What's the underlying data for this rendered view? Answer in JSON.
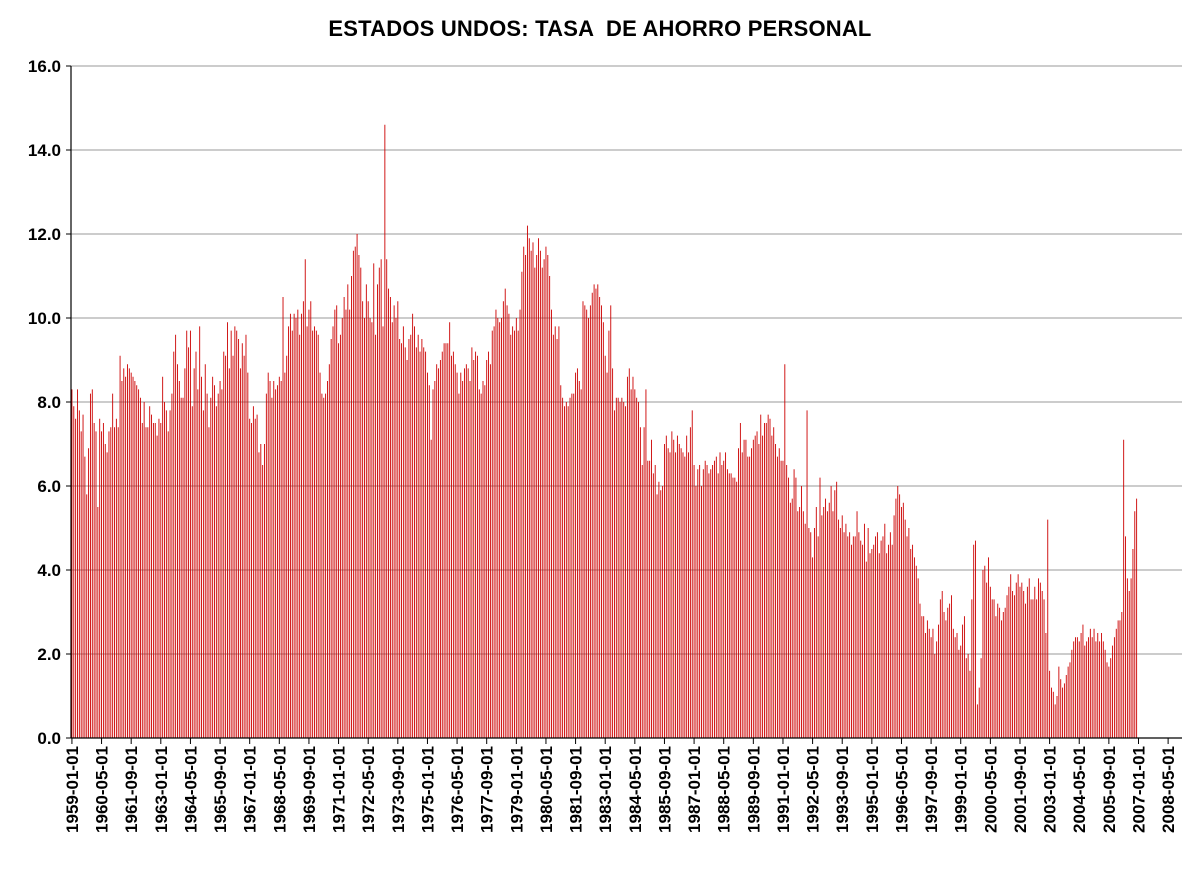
{
  "title": "ESTADOS UNDOS: TASA  DE AHORRO PERSONAL",
  "colors": {
    "bar": "#cc0000",
    "grid": "#999999",
    "axis": "#000000",
    "background": "#ffffff"
  },
  "chart_data": {
    "type": "bar",
    "title": "ESTADOS UNDOS: TASA  DE AHORRO PERSONAL",
    "xlabel": "",
    "ylabel": "",
    "ylim": [
      0,
      16
    ],
    "yticks": [
      "0.0",
      "2.0",
      "4.0",
      "6.0",
      "8.0",
      "10.0",
      "12.0",
      "14.0",
      "16.0"
    ],
    "grid": true,
    "legend": "none",
    "x_start": "1959-01",
    "x_end": "2008-12",
    "x_frequency": "monthly",
    "xtick_labels": [
      "1959-01-01",
      "1960-05-01",
      "1961-09-01",
      "1963-01-01",
      "1964-05-01",
      "1965-09-01",
      "1967-01-01",
      "1968-05-01",
      "1969-09-01",
      "1971-01-01",
      "1972-05-01",
      "1973-09-01",
      "1975-01-01",
      "1976-05-01",
      "1977-09-01",
      "1979-01-01",
      "1980-05-01",
      "1981-09-01",
      "1983-01-01",
      "1984-05-01",
      "1985-09-01",
      "1987-01-01",
      "1988-05-01",
      "1989-09-01",
      "1991-01-01",
      "1992-05-01",
      "1993-09-01",
      "1995-01-01",
      "1996-05-01",
      "1997-09-01",
      "1999-01-01",
      "2000-05-01",
      "2001-09-01",
      "2003-01-01",
      "2004-05-01",
      "2005-09-01",
      "2007-01-01",
      "2008-05-01"
    ],
    "series": [
      {
        "values": [
          8.3,
          7.9,
          7.6,
          8.3,
          7.8,
          7.3,
          7.7,
          6.7,
          5.8,
          6.9,
          8.2,
          8.3,
          7.5,
          7.3,
          5.5,
          7.6,
          7.3,
          7.5,
          7.0,
          6.8,
          7.3,
          7.4,
          8.2,
          7.4,
          7.6,
          7.4,
          9.1,
          8.5,
          8.8,
          8.6,
          8.9,
          8.8,
          8.7,
          8.6,
          8.5,
          8.4,
          8.3,
          8.1,
          7.5,
          8.0,
          7.4,
          7.4,
          7.9,
          7.7,
          7.5,
          7.5,
          7.2,
          7.6,
          7.5,
          8.6,
          8.0,
          7.8,
          7.3,
          7.8,
          8.2,
          9.2,
          9.6,
          8.9,
          8.5,
          8.1,
          8.1,
          8.8,
          9.7,
          9.3,
          9.7,
          7.9,
          8.8,
          9.2,
          8.3,
          9.8,
          8.6,
          7.8,
          8.9,
          8.2,
          7.4,
          8.1,
          8.6,
          8.4,
          7.9,
          8.2,
          8.5,
          8.3,
          9.2,
          9.1,
          9.9,
          8.8,
          9.7,
          9.1,
          9.8,
          9.7,
          9.5,
          8.8,
          9.4,
          9.1,
          9.6,
          8.7,
          7.6,
          7.5,
          7.9,
          7.6,
          7.7,
          6.8,
          7.0,
          6.5,
          7.0,
          8.2,
          8.7,
          8.5,
          8.1,
          8.5,
          8.3,
          8.4,
          8.6,
          8.5,
          10.5,
          8.7,
          9.1,
          9.8,
          10.1,
          9.7,
          10.1,
          10.0,
          10.2,
          9.6,
          10.1,
          10.4,
          11.4,
          9.8,
          10.2,
          10.4,
          9.7,
          9.8,
          9.7,
          9.6,
          8.7,
          8.2,
          8.1,
          8.2,
          8.5,
          8.9,
          9.5,
          9.8,
          10.2,
          10.3,
          9.4,
          9.6,
          10.0,
          10.5,
          10.2,
          10.8,
          10.2,
          11.0,
          11.6,
          11.7,
          12.0,
          11.5,
          11.2,
          10.4,
          10.0,
          10.8,
          10.4,
          10.0,
          9.9,
          11.3,
          9.6,
          10.8,
          11.2,
          11.4,
          9.8,
          14.6,
          11.4,
          10.7,
          10.5,
          9.9,
          10.3,
          10.0,
          10.4,
          9.5,
          9.4,
          9.8,
          9.3,
          9.0,
          9.5,
          9.6,
          10.1,
          9.8,
          9.3,
          9.6,
          9.2,
          9.5,
          9.3,
          9.2,
          8.7,
          8.4,
          7.1,
          8.3,
          8.5,
          8.9,
          8.8,
          9.0,
          9.2,
          9.4,
          9.4,
          9.4,
          9.9,
          9.1,
          9.2,
          8.9,
          8.7,
          8.2,
          8.7,
          8.5,
          8.8,
          8.9,
          8.8,
          8.5,
          9.3,
          9.0,
          9.2,
          9.1,
          8.3,
          8.2,
          8.5,
          8.4,
          9.0,
          9.2,
          8.9,
          9.7,
          9.8,
          10.2,
          10.0,
          9.9,
          10.0,
          10.4,
          10.7,
          10.3,
          10.1,
          9.6,
          9.8,
          9.7,
          10.0,
          9.7,
          10.2,
          11.1,
          11.7,
          11.5,
          12.2,
          11.9,
          11.6,
          11.8,
          11.2,
          11.5,
          11.9,
          11.6,
          11.2,
          11.4,
          11.7,
          11.5,
          11.0,
          10.2,
          9.6,
          9.8,
          9.5,
          9.8,
          8.4,
          8.1,
          7.9,
          8.0,
          7.9,
          8.1,
          8.2,
          8.2,
          8.7,
          8.8,
          8.5,
          8.3,
          10.4,
          10.3,
          10.2,
          10.0,
          10.3,
          10.6,
          10.8,
          10.7,
          10.8,
          10.5,
          10.3,
          9.9,
          9.1,
          8.7,
          9.7,
          10.3,
          8.8,
          7.8,
          8.1,
          8.1,
          8.0,
          8.1,
          8.0,
          7.9,
          8.6,
          8.8,
          8.3,
          8.6,
          8.3,
          8.1,
          8.0,
          7.4,
          6.5,
          7.4,
          8.3,
          6.6,
          6.6,
          7.1,
          6.3,
          6.5,
          5.8,
          6.1,
          5.9,
          6.0,
          7.0,
          7.2,
          6.9,
          6.8,
          7.3,
          7.1,
          6.8,
          7.2,
          7.0,
          6.9,
          6.8,
          6.7,
          7.2,
          6.8,
          7.4,
          7.8,
          6.5,
          6.0,
          6.4,
          6.5,
          6.0,
          6.4,
          6.6,
          6.5,
          6.3,
          6.4,
          6.5,
          6.6,
          6.7,
          6.3,
          6.8,
          6.5,
          6.6,
          6.8,
          6.4,
          6.3,
          6.3,
          6.2,
          6.2,
          6.1,
          6.9,
          7.5,
          6.8,
          7.1,
          7.1,
          6.7,
          6.7,
          6.9,
          7.1,
          7.2,
          7.3,
          7.0,
          7.7,
          7.2,
          7.5,
          7.5,
          7.7,
          7.6,
          7.2,
          7.4,
          7.0,
          6.7,
          6.9,
          6.6,
          6.6,
          8.9,
          6.5,
          6.2,
          5.6,
          5.7,
          6.4,
          6.2,
          5.4,
          5.5,
          6.0,
          5.4,
          5.1,
          7.8,
          5.0,
          4.9,
          4.3,
          5.0,
          5.5,
          4.8,
          6.2,
          5.3,
          5.5,
          5.7,
          5.4,
          5.6,
          6.0,
          5.4,
          5.9,
          6.1,
          5.2,
          5.0,
          5.3,
          4.9,
          5.1,
          4.8,
          4.9,
          4.6,
          4.8,
          4.8,
          5.4,
          4.9,
          4.7,
          4.6,
          5.1,
          4.2,
          5.0,
          4.4,
          4.5,
          4.6,
          4.8,
          4.9,
          4.4,
          4.7,
          4.8,
          5.1,
          4.4,
          4.6,
          4.9,
          4.6,
          5.3,
          5.7,
          6.0,
          5.8,
          5.5,
          5.6,
          5.2,
          4.8,
          5.0,
          4.5,
          4.6,
          4.3,
          4.1,
          3.8,
          3.2,
          2.9,
          2.9,
          2.5,
          2.8,
          2.6,
          2.4,
          2.6,
          2.0,
          2.3,
          2.7,
          3.3,
          3.5,
          3.0,
          2.8,
          3.1,
          3.2,
          3.4,
          2.6,
          2.4,
          2.5,
          2.1,
          2.2,
          2.7,
          2.9,
          1.9,
          2.0,
          1.6,
          3.3,
          4.6,
          4.7,
          0.8,
          1.2,
          1.9,
          4.0,
          4.1,
          3.7,
          4.3,
          3.6,
          3.3,
          3.3,
          2.9,
          3.2,
          3.1,
          2.8,
          3.0,
          3.1,
          3.4,
          3.6,
          3.9,
          3.5,
          3.4,
          3.7,
          3.9,
          3.6,
          3.7,
          3.5,
          3.2,
          3.6,
          3.8,
          3.3,
          3.3,
          3.6,
          3.3,
          3.8,
          3.7,
          3.5,
          3.3,
          2.5,
          5.2,
          1.6,
          1.2,
          1.1,
          0.8,
          1.0,
          1.7,
          1.4,
          1.2,
          1.3,
          1.5,
          1.7,
          1.8,
          2.1,
          2.3,
          2.4,
          2.4,
          2.3,
          2.5,
          2.7,
          2.2,
          2.3,
          2.4,
          2.6,
          2.4,
          2.6,
          2.3,
          2.5,
          2.3,
          2.5,
          2.3,
          2.1,
          1.8,
          1.7,
          1.9,
          2.2,
          2.4,
          2.6,
          2.8,
          2.8,
          3.0,
          7.1,
          4.8,
          3.8,
          3.5,
          3.8,
          4.5,
          5.4,
          5.7
        ]
      }
    ]
  }
}
